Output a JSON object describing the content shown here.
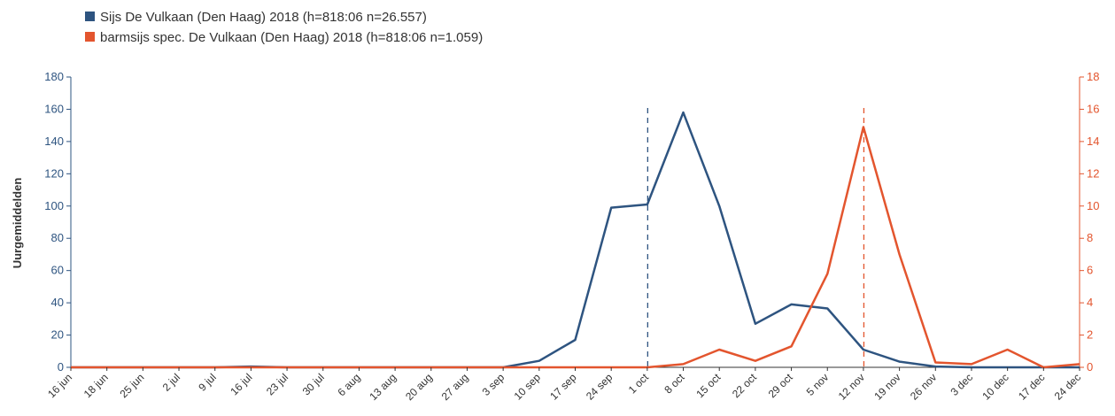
{
  "chart_data": {
    "type": "line",
    "xlabel": "",
    "ylabel": "Uurgemiddelden",
    "categories": [
      "16 jun",
      "18 jun",
      "25 jun",
      "2 jul",
      "9 jul",
      "16 jul",
      "23 jul",
      "30 jul",
      "6 aug",
      "13 aug",
      "20 aug",
      "27 aug",
      "3 sep",
      "10 sep",
      "17 sep",
      "24 sep",
      "1 oct",
      "8 oct",
      "15 oct",
      "22 oct",
      "29 oct",
      "5 nov",
      "12 nov",
      "19 nov",
      "26 nov",
      "3 dec",
      "10 dec",
      "17 dec",
      "24 dec"
    ],
    "ylim_left": [
      0,
      180
    ],
    "yticks_left": [
      0,
      20,
      40,
      60,
      80,
      100,
      120,
      140,
      160,
      180
    ],
    "ylim_right": [
      0,
      18
    ],
    "yticks_right": [
      0,
      2,
      4,
      6,
      8,
      10,
      12,
      14,
      16,
      18
    ],
    "grid": false,
    "legend_position": "top-left",
    "series": [
      {
        "name": "Sijs De Vulkaan (Den Haag) 2018 (h=818:06 n=26.557)",
        "axis": "left",
        "color": "#2e5480",
        "values": [
          0,
          0,
          0,
          0,
          0,
          0.5,
          0,
          0,
          0,
          0,
          0,
          0,
          0,
          4,
          17,
          99,
          101,
          158,
          100,
          27,
          39,
          36.5,
          11,
          3.5,
          0.5,
          0,
          0,
          0,
          0
        ],
        "marker_category": "1 oct"
      },
      {
        "name": "barmsijs spec. De Vulkaan (Den Haag) 2018 (h=818:06 n=1.059)",
        "axis": "right",
        "color": "#e3552e",
        "values": [
          0,
          0,
          0,
          0,
          0,
          0,
          0,
          0,
          0,
          0,
          0,
          0,
          0,
          0,
          0,
          0,
          0,
          0.2,
          1.1,
          0.4,
          1.3,
          5.8,
          14.9,
          7.0,
          0.3,
          0.2,
          1.1,
          0,
          0.2
        ],
        "marker_category": "12 nov"
      }
    ]
  }
}
